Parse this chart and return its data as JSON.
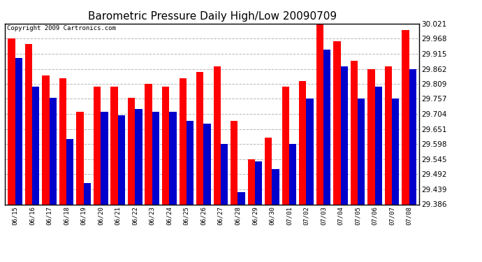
{
  "title": "Barometric Pressure Daily High/Low 20090709",
  "copyright": "Copyright 2009 Cartronics.com",
  "dates": [
    "06/15",
    "06/16",
    "06/17",
    "06/18",
    "06/19",
    "06/20",
    "06/21",
    "06/22",
    "06/23",
    "06/24",
    "06/25",
    "06/26",
    "06/27",
    "06/28",
    "06/29",
    "06/30",
    "07/01",
    "07/02",
    "07/03",
    "07/04",
    "07/05",
    "07/06",
    "07/07",
    "07/08"
  ],
  "highs": [
    29.97,
    29.95,
    29.84,
    29.83,
    29.71,
    29.8,
    29.8,
    29.76,
    29.81,
    29.8,
    29.83,
    29.85,
    29.87,
    29.68,
    29.545,
    29.62,
    29.8,
    29.82,
    30.021,
    29.96,
    29.89,
    29.86,
    29.87,
    29.998
  ],
  "lows": [
    29.9,
    29.8,
    29.76,
    29.615,
    29.46,
    29.71,
    29.7,
    29.72,
    29.71,
    29.71,
    29.68,
    29.67,
    29.598,
    29.43,
    29.538,
    29.51,
    29.598,
    29.758,
    29.93,
    29.87,
    29.758,
    29.8,
    29.757,
    29.862
  ],
  "high_color": "#ff0000",
  "low_color": "#0000cc",
  "bg_color": "#ffffff",
  "grid_color": "#b0b0b0",
  "ymin": 29.386,
  "ymax": 30.021,
  "yticks": [
    29.386,
    29.439,
    29.492,
    29.545,
    29.598,
    29.651,
    29.704,
    29.757,
    29.809,
    29.862,
    29.915,
    29.968,
    30.021
  ],
  "title_fontsize": 11,
  "copyright_fontsize": 6.5,
  "bar_width": 0.42,
  "figwidth": 6.9,
  "figheight": 3.75
}
